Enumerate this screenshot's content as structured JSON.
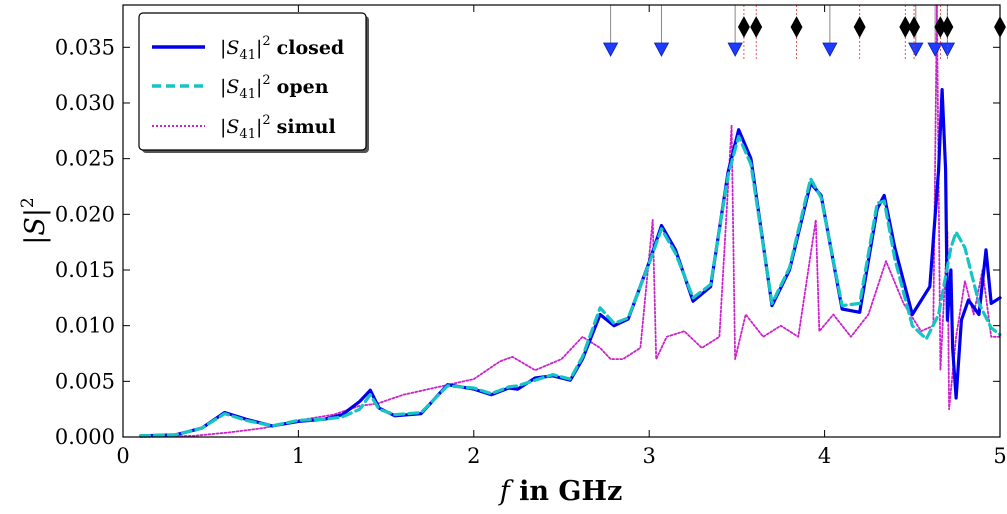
{
  "chart_data": {
    "type": "line",
    "xlabel_var": "f",
    "xlabel_rest": " in GHz",
    "ylabel_var": "|S|",
    "ylabel_sup": "2",
    "xlim": [
      0,
      5
    ],
    "ylim": [
      0,
      0.0388
    ],
    "x_ticks": [
      0,
      1,
      2,
      3,
      4,
      5
    ],
    "x_tick_labels": [
      "0",
      "1",
      "2",
      "3",
      "4",
      "5"
    ],
    "y_ticks": [
      0,
      0.005,
      0.01,
      0.015,
      0.02,
      0.025,
      0.03,
      0.035
    ],
    "y_tick_labels": [
      "0.000",
      "0.005",
      "0.010",
      "0.015",
      "0.020",
      "0.025",
      "0.030",
      "0.035"
    ],
    "legend_position": "top-left",
    "legend_entries": [
      {
        "prefix": "|S",
        "sub": "41",
        "suffix": "|",
        "sup": "2",
        "label": "closed"
      },
      {
        "prefix": "|S",
        "sub": "41",
        "suffix": "|",
        "sup": "2",
        "label": "open"
      },
      {
        "prefix": "|S",
        "sub": "41",
        "suffix": "|",
        "sup": "2",
        "label": "simul"
      }
    ],
    "series": [
      {
        "key": "closed",
        "color": "#0000ee",
        "style": "solid",
        "points": [
          [
            0.1,
            0.0001
          ],
          [
            0.3,
            0.0002
          ],
          [
            0.45,
            0.0008
          ],
          [
            0.58,
            0.0022
          ],
          [
            0.7,
            0.0016
          ],
          [
            0.85,
            0.001
          ],
          [
            1.0,
            0.0014
          ],
          [
            1.15,
            0.0016
          ],
          [
            1.25,
            0.002
          ],
          [
            1.35,
            0.0032
          ],
          [
            1.41,
            0.0042
          ],
          [
            1.46,
            0.0026
          ],
          [
            1.55,
            0.0019
          ],
          [
            1.7,
            0.0021
          ],
          [
            1.85,
            0.0047
          ],
          [
            2.0,
            0.0043
          ],
          [
            2.1,
            0.0038
          ],
          [
            2.2,
            0.0044
          ],
          [
            2.25,
            0.0043
          ],
          [
            2.35,
            0.0053
          ],
          [
            2.45,
            0.0055
          ],
          [
            2.55,
            0.0051
          ],
          [
            2.62,
            0.007
          ],
          [
            2.72,
            0.011
          ],
          [
            2.8,
            0.01
          ],
          [
            2.88,
            0.0106
          ],
          [
            3.0,
            0.0157
          ],
          [
            3.07,
            0.019
          ],
          [
            3.15,
            0.0168
          ],
          [
            3.25,
            0.0122
          ],
          [
            3.35,
            0.0135
          ],
          [
            3.45,
            0.0238
          ],
          [
            3.51,
            0.0276
          ],
          [
            3.58,
            0.025
          ],
          [
            3.7,
            0.0118
          ],
          [
            3.8,
            0.015
          ],
          [
            3.92,
            0.0228
          ],
          [
            3.98,
            0.0217
          ],
          [
            4.1,
            0.0115
          ],
          [
            4.2,
            0.0112
          ],
          [
            4.3,
            0.0205
          ],
          [
            4.34,
            0.0217
          ],
          [
            4.4,
            0.017
          ],
          [
            4.5,
            0.011
          ],
          [
            4.6,
            0.0135
          ],
          [
            4.65,
            0.024
          ],
          [
            4.67,
            0.0312
          ],
          [
            4.69,
            0.024
          ],
          [
            4.7,
            0.0105
          ],
          [
            4.72,
            0.015
          ],
          [
            4.73,
            0.008
          ],
          [
            4.75,
            0.0035
          ],
          [
            4.78,
            0.0105
          ],
          [
            4.82,
            0.0123
          ],
          [
            4.88,
            0.011
          ],
          [
            4.92,
            0.0168
          ],
          [
            4.95,
            0.012
          ],
          [
            5.0,
            0.0125
          ]
        ]
      },
      {
        "key": "open",
        "color": "#17c4c4",
        "style": "dashed",
        "points": [
          [
            0.1,
            0.0001
          ],
          [
            0.3,
            0.0002
          ],
          [
            0.45,
            0.0008
          ],
          [
            0.58,
            0.0021
          ],
          [
            0.7,
            0.0015
          ],
          [
            0.85,
            0.001
          ],
          [
            1.0,
            0.0015
          ],
          [
            1.15,
            0.0016
          ],
          [
            1.25,
            0.0018
          ],
          [
            1.35,
            0.0025
          ],
          [
            1.41,
            0.0038
          ],
          [
            1.46,
            0.0025
          ],
          [
            1.55,
            0.002
          ],
          [
            1.7,
            0.0022
          ],
          [
            1.85,
            0.0046
          ],
          [
            2.0,
            0.0044
          ],
          [
            2.1,
            0.0039
          ],
          [
            2.2,
            0.0045
          ],
          [
            2.25,
            0.0046
          ],
          [
            2.35,
            0.0051
          ],
          [
            2.45,
            0.0056
          ],
          [
            2.55,
            0.0052
          ],
          [
            2.62,
            0.0072
          ],
          [
            2.72,
            0.0116
          ],
          [
            2.8,
            0.0102
          ],
          [
            2.88,
            0.0107
          ],
          [
            3.0,
            0.0156
          ],
          [
            3.07,
            0.0187
          ],
          [
            3.15,
            0.0165
          ],
          [
            3.25,
            0.0125
          ],
          [
            3.35,
            0.0137
          ],
          [
            3.45,
            0.0235
          ],
          [
            3.51,
            0.027
          ],
          [
            3.58,
            0.0245
          ],
          [
            3.7,
            0.012
          ],
          [
            3.8,
            0.0152
          ],
          [
            3.92,
            0.0232
          ],
          [
            3.98,
            0.0215
          ],
          [
            4.1,
            0.0118
          ],
          [
            4.2,
            0.012
          ],
          [
            4.3,
            0.021
          ],
          [
            4.34,
            0.0212
          ],
          [
            4.4,
            0.016
          ],
          [
            4.5,
            0.01
          ],
          [
            4.58,
            0.0088
          ],
          [
            4.65,
            0.011
          ],
          [
            4.72,
            0.017
          ],
          [
            4.75,
            0.0184
          ],
          [
            4.8,
            0.017
          ],
          [
            4.88,
            0.012
          ],
          [
            4.95,
            0.0098
          ],
          [
            5.0,
            0.0092
          ]
        ]
      },
      {
        "key": "simul",
        "color": "#cc22cc",
        "style": "dotted",
        "points": [
          [
            0.1,
            0.0
          ],
          [
            0.4,
            0.0001
          ],
          [
            0.6,
            0.0004
          ],
          [
            0.8,
            0.0008
          ],
          [
            1.0,
            0.0015
          ],
          [
            1.2,
            0.002
          ],
          [
            1.35,
            0.0028
          ],
          [
            1.45,
            0.003
          ],
          [
            1.6,
            0.0038
          ],
          [
            1.8,
            0.0045
          ],
          [
            2.0,
            0.0052
          ],
          [
            2.15,
            0.0068
          ],
          [
            2.22,
            0.0072
          ],
          [
            2.35,
            0.006
          ],
          [
            2.5,
            0.007
          ],
          [
            2.62,
            0.009
          ],
          [
            2.72,
            0.008
          ],
          [
            2.78,
            0.007
          ],
          [
            2.85,
            0.007
          ],
          [
            2.95,
            0.008
          ],
          [
            3.02,
            0.0195
          ],
          [
            3.04,
            0.007
          ],
          [
            3.1,
            0.009
          ],
          [
            3.2,
            0.0095
          ],
          [
            3.3,
            0.008
          ],
          [
            3.4,
            0.009
          ],
          [
            3.47,
            0.028
          ],
          [
            3.49,
            0.007
          ],
          [
            3.55,
            0.011
          ],
          [
            3.65,
            0.009
          ],
          [
            3.75,
            0.01
          ],
          [
            3.85,
            0.009
          ],
          [
            3.95,
            0.0195
          ],
          [
            3.97,
            0.0095
          ],
          [
            4.05,
            0.011
          ],
          [
            4.15,
            0.009
          ],
          [
            4.25,
            0.011
          ],
          [
            4.35,
            0.0158
          ],
          [
            4.45,
            0.012
          ],
          [
            4.55,
            0.0095
          ],
          [
            4.62,
            0.01
          ],
          [
            4.64,
            0.0388
          ],
          [
            4.66,
            0.006
          ],
          [
            4.7,
            0.0185
          ],
          [
            4.71,
            0.0025
          ],
          [
            4.75,
            0.009
          ],
          [
            4.8,
            0.014
          ],
          [
            4.85,
            0.011
          ],
          [
            4.9,
            0.015
          ],
          [
            4.95,
            0.009
          ],
          [
            5.0,
            0.009
          ]
        ]
      }
    ],
    "markers_closed": [
      2.78,
      3.07,
      3.49,
      4.03,
      4.52,
      4.63,
      4.7
    ],
    "markers_open": [
      3.54,
      3.61,
      3.84,
      4.2,
      4.46,
      4.51,
      4.66,
      4.7,
      5.0
    ]
  }
}
